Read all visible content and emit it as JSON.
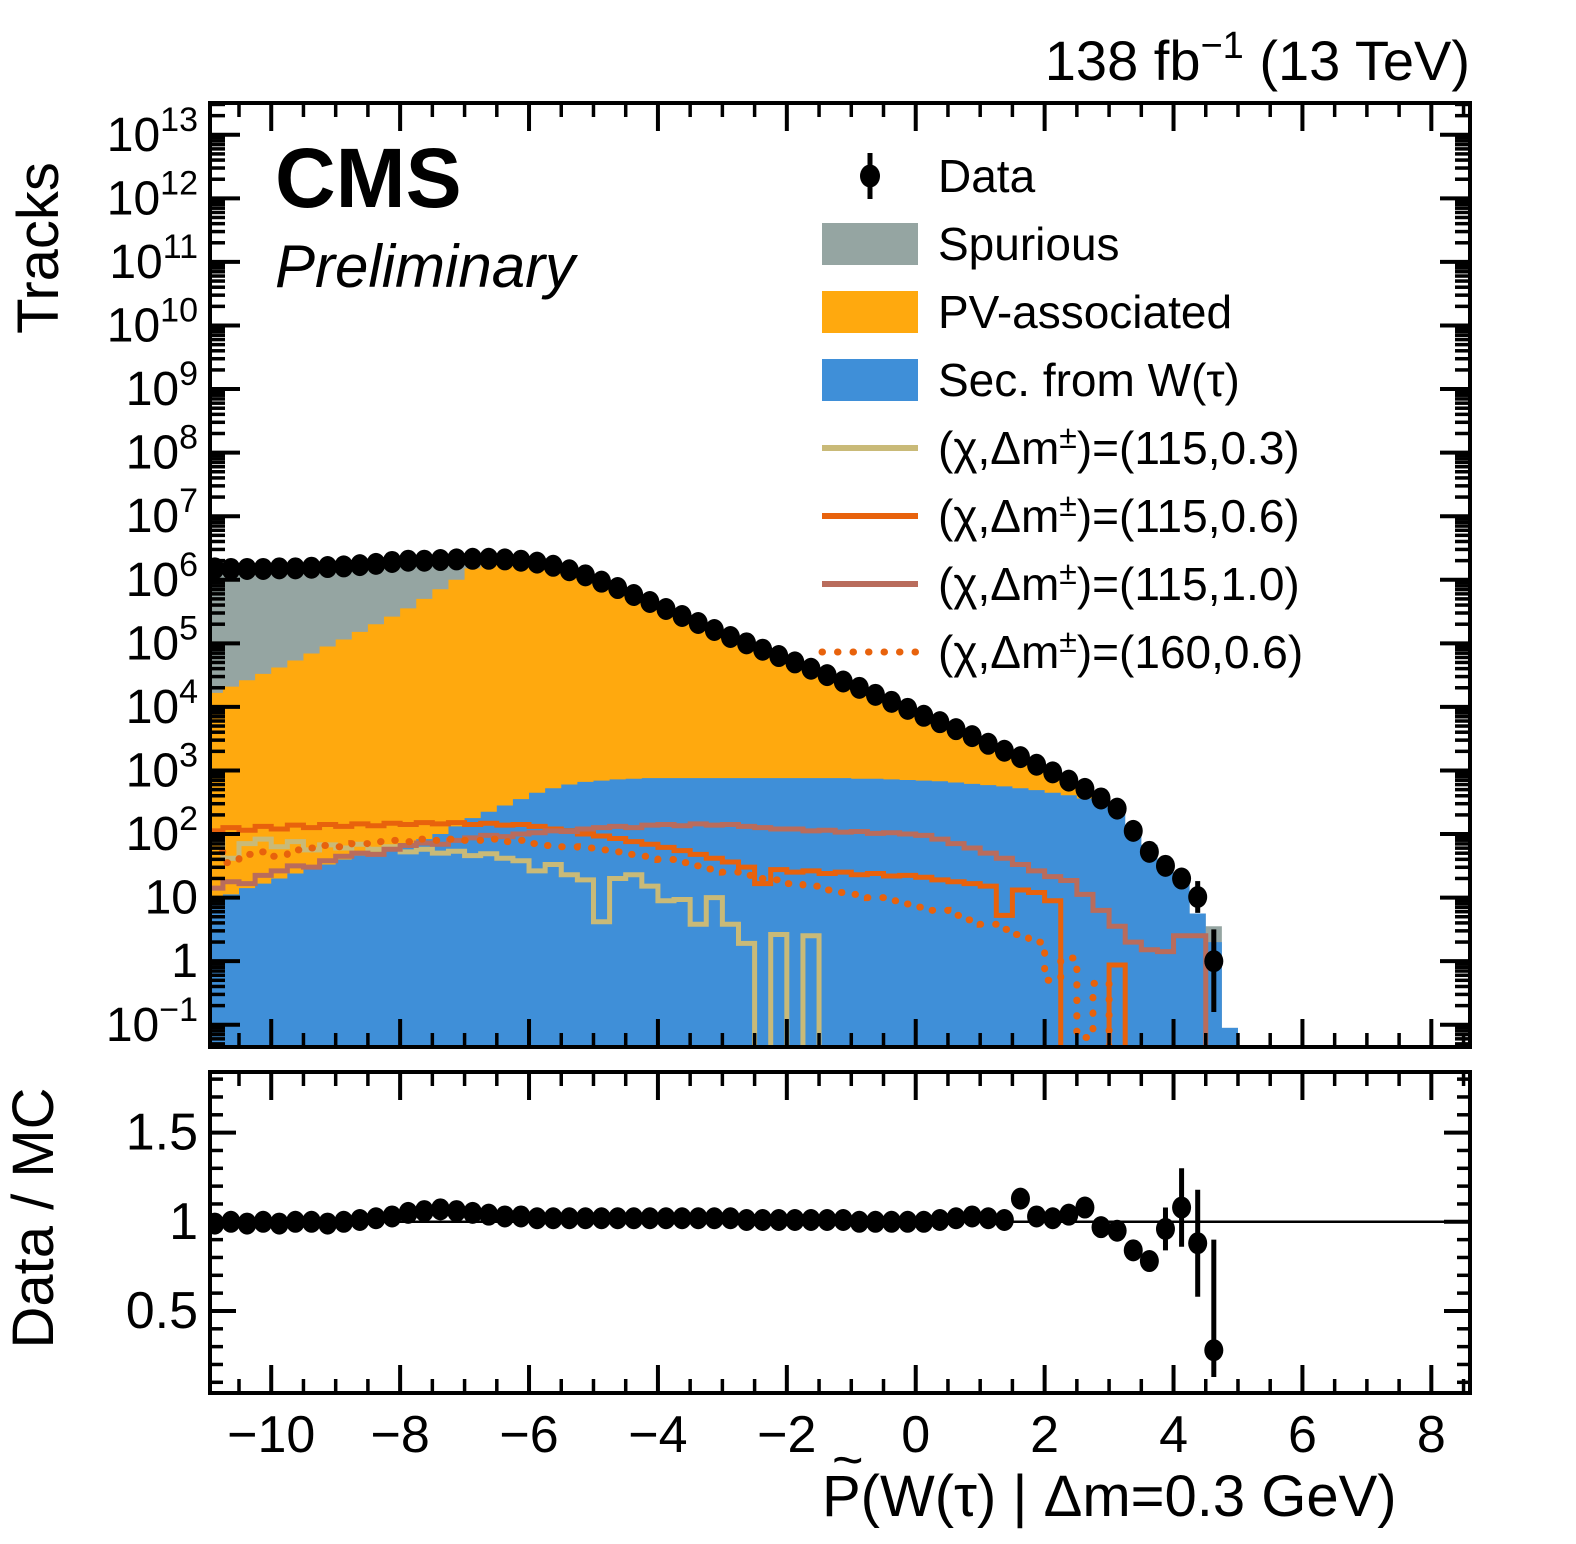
{
  "header": {
    "lumi": {
      "prefix": "138 fb",
      "sup": "−1",
      "suffix": " (13 TeV)"
    }
  },
  "experiment": {
    "name": "CMS",
    "status": "Preliminary"
  },
  "legend": {
    "items": [
      {
        "type": "marker",
        "color": "#000000",
        "label_pre": "Data",
        "label_sup": "",
        "label_post": ""
      },
      {
        "type": "box",
        "color": "#95a5a2",
        "label_pre": "Spurious",
        "label_sup": "",
        "label_post": ""
      },
      {
        "type": "box",
        "color": "#ffa90e",
        "label_pre": "PV-associated",
        "label_sup": "",
        "label_post": ""
      },
      {
        "type": "box",
        "color": "#3f8fd8",
        "label_pre": "Sec. from W(τ)",
        "label_sup": "",
        "label_post": ""
      },
      {
        "type": "line",
        "color": "#c9ba78",
        "label_pre": "(χ,Δm",
        "label_sup": "±",
        "label_post": ")=(115,0.3)"
      },
      {
        "type": "line",
        "color": "#e8620c",
        "label_pre": "(χ,Δm",
        "label_sup": "±",
        "label_post": ")=(115,0.6)"
      },
      {
        "type": "line",
        "color": "#b96c5c",
        "label_pre": "(χ,Δm",
        "label_sup": "±",
        "label_post": ")=(115,1.0)"
      },
      {
        "type": "dotted",
        "color": "#e8620c",
        "label_pre": "(χ,Δm",
        "label_sup": "±",
        "label_post": ")=(160,0.6)"
      }
    ]
  },
  "chart_data": {
    "type": "area",
    "title": "",
    "ylabel_main": "Tracks",
    "ylabel_ratio": "Data / MC",
    "xlabel": {
      "p": "P",
      "tilde": "~",
      "rest": "(W(τ) | Δm=0.3 GeV)"
    },
    "x_range": [
      -10.95,
      8.6
    ],
    "main_log_range": [
      -1.35,
      13.5
    ],
    "ratio_range": [
      0.04,
      1.84
    ],
    "x_major_ticks": [
      -10,
      -8,
      -6,
      -4,
      -2,
      0,
      2,
      4,
      6,
      8
    ],
    "x_minor_step": 0.5,
    "y_decades_labeled": [
      13,
      12,
      11,
      10,
      9,
      8,
      7,
      6,
      5,
      4,
      3,
      2,
      1,
      0,
      -1
    ],
    "ratio_major_ticks": [
      0.5,
      1,
      1.5
    ],
    "ratio_minor_step": 0.1,
    "ratio_ref_line": 1.0,
    "bins": {
      "start": -11.0,
      "width": 0.25,
      "count": 64
    },
    "colors": {
      "spurious": "#95a5a2",
      "pv_associated": "#ffa90e",
      "sec_from_w": "#3f8fd8",
      "data": "#000000",
      "sig_115_03": "#c9ba78",
      "sig_115_06": "#e8620c",
      "sig_115_10": "#b96c5c",
      "sig_160_06": "#e8620c"
    },
    "mc_total_logy": [
      6.18,
      6.17,
      6.17,
      6.17,
      6.18,
      6.18,
      6.19,
      6.2,
      6.21,
      6.22,
      6.24,
      6.26,
      6.27,
      6.27,
      6.28,
      6.29,
      6.31,
      6.31,
      6.31,
      6.29,
      6.26,
      6.21,
      6.14,
      6.06,
      5.96,
      5.86,
      5.75,
      5.64,
      5.53,
      5.42,
      5.31,
      5.2,
      5.09,
      5.0,
      4.9,
      4.8,
      4.7,
      4.6,
      4.5,
      4.4,
      4.3,
      4.19,
      4.08,
      3.97,
      3.86,
      3.75,
      3.63,
      3.52,
      3.41,
      3.31,
      3.16,
      3.08,
      2.96,
      2.82,
      2.68,
      2.57,
      2.42,
      2.13,
      1.83,
      1.52,
      1.12,
      0.75,
      0.55,
      -1.05
    ],
    "pv_top_logy": [
      4.22,
      4.32,
      4.42,
      4.52,
      4.62,
      4.73,
      4.84,
      4.95,
      5.06,
      5.18,
      5.3,
      5.42,
      5.55,
      5.7,
      5.85,
      6.0,
      6.18,
      6.28,
      6.29,
      6.27,
      6.24,
      6.19,
      6.12,
      6.04,
      5.94,
      5.84,
      5.73,
      5.62,
      5.51,
      5.4,
      5.29,
      5.18,
      5.07,
      4.98,
      4.88,
      4.78,
      4.68,
      4.58,
      4.48,
      4.38,
      4.28,
      4.17,
      4.06,
      3.95,
      3.84,
      3.73,
      3.61,
      3.5,
      3.39,
      3.29,
      3.14,
      3.06,
      2.94,
      2.8,
      2.66,
      2.53,
      -2,
      -2,
      -2,
      -2,
      -2,
      -2,
      -2,
      -2
    ],
    "sec_top_logy": [
      0.95,
      1.05,
      1.15,
      1.22,
      1.3,
      1.38,
      1.45,
      1.52,
      1.6,
      1.66,
      1.72,
      1.78,
      1.85,
      1.92,
      2.0,
      2.12,
      2.25,
      2.35,
      2.45,
      2.55,
      2.65,
      2.72,
      2.78,
      2.82,
      2.84,
      2.86,
      2.87,
      2.88,
      2.88,
      2.88,
      2.88,
      2.88,
      2.88,
      2.88,
      2.88,
      2.88,
      2.88,
      2.88,
      2.88,
      2.88,
      2.87,
      2.87,
      2.86,
      2.85,
      2.84,
      2.83,
      2.81,
      2.79,
      2.77,
      2.75,
      2.72,
      2.69,
      2.65,
      2.61,
      2.56,
      2.5,
      2.42,
      2.13,
      1.83,
      1.52,
      1.25,
      0.75,
      0.3,
      -1.05
    ],
    "signals": [
      {
        "name": "(115,0.3)",
        "style": "solid",
        "color": "#c9ba78",
        "logy": [
          1.9,
          1.62,
          1.85,
          1.92,
          1.8,
          1.88,
          1.75,
          1.83,
          1.78,
          1.84,
          1.76,
          1.8,
          1.72,
          1.76,
          1.7,
          1.73,
          1.66,
          1.69,
          1.62,
          1.58,
          1.42,
          1.52,
          1.36,
          1.28,
          0.62,
          1.3,
          1.36,
          1.18,
          0.95,
          0.97,
          0.58,
          1.0,
          0.58,
          0.28,
          -2,
          0.42,
          -2,
          0.4,
          -2,
          -2,
          -2,
          -2,
          -2,
          -2,
          -2,
          -2,
          -2,
          -2,
          -2,
          -2,
          -2,
          -2,
          -2,
          -2,
          -2,
          -2,
          -2,
          -2,
          -2,
          -2,
          -2,
          -2,
          -2,
          -2
        ]
      },
      {
        "name": "(115,0.6)",
        "style": "solid",
        "color": "#e8620c",
        "logy": [
          2.05,
          2.1,
          2.06,
          2.12,
          2.08,
          2.14,
          2.1,
          2.15,
          2.12,
          2.16,
          2.13,
          2.17,
          2.15,
          2.18,
          2.16,
          2.18,
          2.15,
          2.17,
          2.14,
          2.15,
          2.12,
          2.08,
          2.05,
          2.0,
          1.97,
          1.93,
          1.88,
          1.84,
          1.79,
          1.74,
          1.68,
          1.62,
          1.56,
          1.48,
          1.22,
          1.44,
          1.4,
          1.42,
          1.38,
          1.4,
          1.36,
          1.38,
          1.34,
          1.35,
          1.32,
          1.28,
          1.25,
          1.22,
          1.18,
          0.72,
          1.12,
          1.08,
          0.95,
          -2,
          -2,
          -2,
          -0.06,
          -2,
          -2,
          -2,
          -2,
          -2,
          -2,
          -2
        ]
      },
      {
        "name": "(115,1.0)",
        "style": "solid",
        "color": "#b96c5c",
        "logy": [
          1.15,
          1.25,
          1.22,
          1.35,
          1.42,
          1.5,
          1.48,
          1.58,
          1.65,
          1.7,
          1.68,
          1.76,
          1.82,
          1.86,
          1.84,
          1.9,
          1.94,
          1.98,
          1.96,
          2.0,
          2.02,
          2.05,
          2.04,
          2.08,
          2.1,
          2.12,
          2.1,
          2.14,
          2.15,
          2.13,
          2.16,
          2.14,
          2.15,
          2.12,
          2.1,
          2.08,
          2.08,
          2.05,
          2.06,
          2.03,
          2.04,
          2.01,
          2.02,
          2.0,
          1.98,
          1.92,
          1.85,
          1.78,
          1.7,
          1.62,
          1.52,
          1.42,
          1.33,
          1.27,
          1.05,
          0.8,
          0.55,
          0.3,
          0.18,
          0.15,
          0.4,
          0.4,
          -2,
          -2
        ]
      },
      {
        "name": "(160,0.6)",
        "style": "dotted",
        "color": "#e8620c",
        "logy": [
          1.72,
          1.55,
          1.68,
          1.72,
          1.65,
          1.75,
          1.78,
          1.82,
          1.8,
          1.85,
          1.88,
          1.9,
          1.88,
          1.92,
          1.9,
          1.92,
          1.9,
          1.92,
          1.88,
          1.9,
          1.85,
          1.82,
          1.8,
          1.78,
          1.75,
          1.72,
          1.68,
          1.65,
          1.6,
          1.55,
          1.5,
          1.45,
          1.4,
          1.35,
          1.3,
          1.28,
          1.22,
          1.18,
          1.12,
          1.08,
          1.05,
          1.0,
          0.95,
          0.9,
          0.85,
          0.8,
          0.72,
          0.65,
          0.58,
          0.5,
          0.42,
          0.3,
          -0.3,
          0.05,
          -1.2,
          -0.35,
          -2,
          -2,
          -2,
          -2,
          -2,
          -2,
          -2,
          -2
        ]
      }
    ],
    "data_points": {
      "x_start": -10.875,
      "x_step": 0.25,
      "logy": [
        6.18,
        6.17,
        6.17,
        6.17,
        6.18,
        6.18,
        6.19,
        6.2,
        6.21,
        6.23,
        6.25,
        6.28,
        6.3,
        6.3,
        6.31,
        6.32,
        6.33,
        6.33,
        6.32,
        6.3,
        6.27,
        6.22,
        6.15,
        6.07,
        5.97,
        5.87,
        5.76,
        5.65,
        5.54,
        5.43,
        5.32,
        5.21,
        5.1,
        5.0,
        4.9,
        4.8,
        4.7,
        4.6,
        4.5,
        4.4,
        4.3,
        4.19,
        4.08,
        3.97,
        3.86,
        3.76,
        3.65,
        3.54,
        3.42,
        3.31,
        3.21,
        3.09,
        2.97,
        2.84,
        2.71,
        2.56,
        2.4,
        2.05,
        1.72,
        1.5,
        1.3,
        1.01,
        0.0
      ],
      "logy_err_lo": [
        0,
        0,
        0,
        0,
        0,
        0,
        0,
        0,
        0,
        0,
        0,
        0,
        0,
        0,
        0,
        0,
        0,
        0,
        0,
        0,
        0,
        0,
        0,
        0,
        0,
        0,
        0,
        0,
        0,
        0,
        0,
        0,
        0,
        0,
        0,
        0,
        0,
        0,
        0,
        0,
        0,
        0,
        0,
        0,
        0,
        0,
        0,
        0,
        0,
        0,
        0,
        0,
        0,
        0,
        0,
        0,
        0,
        0,
        0,
        0,
        0,
        0.25,
        0.8
      ],
      "logy_err_hi": [
        0,
        0,
        0,
        0,
        0,
        0,
        0,
        0,
        0,
        0,
        0,
        0,
        0,
        0,
        0,
        0,
        0,
        0,
        0,
        0,
        0,
        0,
        0,
        0,
        0,
        0,
        0,
        0,
        0,
        0,
        0,
        0,
        0,
        0,
        0,
        0,
        0,
        0,
        0,
        0,
        0,
        0,
        0,
        0,
        0,
        0,
        0,
        0,
        0,
        0,
        0,
        0,
        0,
        0,
        0,
        0,
        0,
        0,
        0,
        0,
        0,
        0.25,
        0.5
      ]
    },
    "ratio_points": {
      "values": [
        0.99,
        1.0,
        0.99,
        1.0,
        0.99,
        1.0,
        1.0,
        0.99,
        1.0,
        1.01,
        1.02,
        1.03,
        1.05,
        1.06,
        1.07,
        1.06,
        1.05,
        1.04,
        1.03,
        1.03,
        1.02,
        1.02,
        1.02,
        1.02,
        1.02,
        1.02,
        1.02,
        1.02,
        1.02,
        1.02,
        1.02,
        1.02,
        1.02,
        1.01,
        1.01,
        1.01,
        1.01,
        1.01,
        1.01,
        1.01,
        1.0,
        1.0,
        1.0,
        1.0,
        1.0,
        1.01,
        1.02,
        1.03,
        1.02,
        1.01,
        1.13,
        1.03,
        1.02,
        1.04,
        1.08,
        0.97,
        0.95,
        0.84,
        0.78,
        0.96,
        1.08,
        0.88,
        0.28
      ],
      "err_lo": [
        0,
        0,
        0,
        0,
        0,
        0,
        0,
        0,
        0,
        0,
        0,
        0,
        0,
        0,
        0,
        0,
        0,
        0,
        0,
        0,
        0,
        0,
        0,
        0,
        0,
        0,
        0,
        0,
        0,
        0,
        0,
        0,
        0,
        0,
        0,
        0,
        0,
        0,
        0,
        0,
        0,
        0,
        0,
        0,
        0,
        0,
        0,
        0,
        0,
        0,
        0,
        0,
        0,
        0,
        0,
        0.03,
        0.04,
        0.04,
        0.05,
        0.12,
        0.22,
        0.3,
        0.15
      ],
      "err_hi": [
        0,
        0,
        0,
        0,
        0,
        0,
        0,
        0,
        0,
        0,
        0,
        0,
        0,
        0,
        0,
        0,
        0,
        0,
        0,
        0,
        0,
        0,
        0,
        0,
        0,
        0,
        0,
        0,
        0,
        0,
        0,
        0,
        0,
        0,
        0,
        0,
        0,
        0,
        0,
        0,
        0,
        0,
        0,
        0,
        0,
        0,
        0,
        0,
        0,
        0,
        0,
        0,
        0,
        0,
        0,
        0.03,
        0.04,
        0.04,
        0.05,
        0.12,
        0.22,
        0.3,
        0.62
      ]
    }
  }
}
